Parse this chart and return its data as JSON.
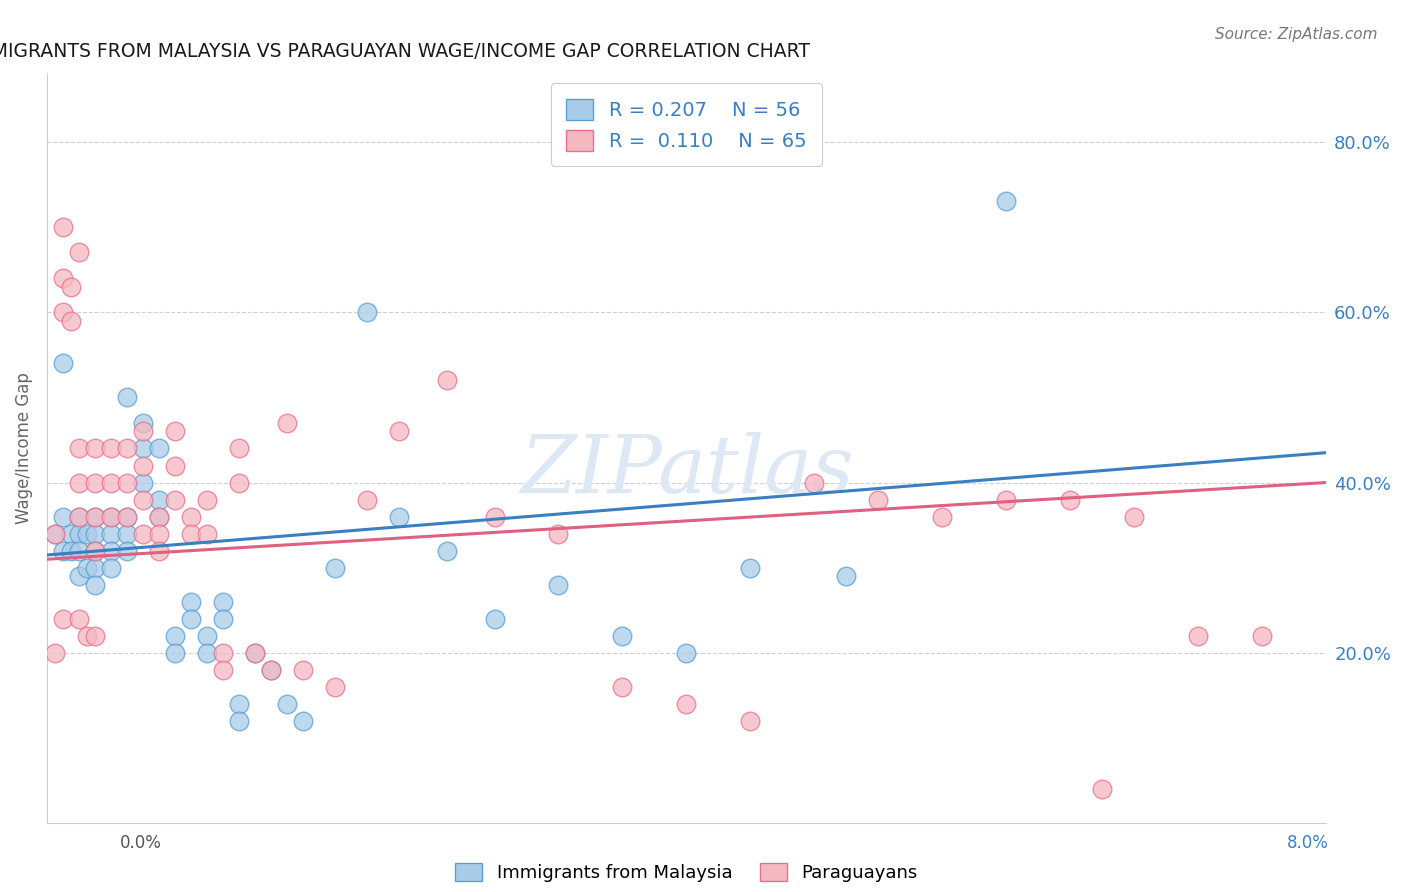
{
  "title": "IMMIGRANTS FROM MALAYSIA VS PARAGUAYAN WAGE/INCOME GAP CORRELATION CHART",
  "source": "Source: ZipAtlas.com",
  "ylabel": "Wage/Income Gap",
  "ytick_values": [
    0.2,
    0.4,
    0.6,
    0.8
  ],
  "xmin": 0.0,
  "xmax": 0.08,
  "ymin": 0.0,
  "ymax": 0.88,
  "blue_color": "#a8cce8",
  "pink_color": "#f4b8c1",
  "blue_edge_color": "#5a9fd4",
  "pink_edge_color": "#e87090",
  "blue_line_color": "#3a7fc1",
  "pink_line_color": "#e06080",
  "watermark_color": "#dde8f5",
  "blue_r": 0.207,
  "blue_n": 56,
  "pink_r": 0.11,
  "pink_n": 65,
  "blue_line_x0": 0.0,
  "blue_line_y0": 0.315,
  "blue_line_x1": 0.08,
  "blue_line_y1": 0.435,
  "pink_line_x0": 0.0,
  "pink_line_y0": 0.31,
  "pink_line_x1": 0.08,
  "pink_line_y1": 0.4,
  "blue_scatter_x": [
    0.0005,
    0.001,
    0.001,
    0.001,
    0.0015,
    0.0015,
    0.002,
    0.002,
    0.002,
    0.002,
    0.0025,
    0.0025,
    0.003,
    0.003,
    0.003,
    0.003,
    0.003,
    0.004,
    0.004,
    0.004,
    0.004,
    0.005,
    0.005,
    0.005,
    0.005,
    0.006,
    0.006,
    0.006,
    0.007,
    0.007,
    0.007,
    0.008,
    0.008,
    0.009,
    0.009,
    0.01,
    0.01,
    0.011,
    0.011,
    0.012,
    0.012,
    0.013,
    0.014,
    0.015,
    0.016,
    0.018,
    0.02,
    0.022,
    0.025,
    0.028,
    0.032,
    0.036,
    0.04,
    0.044,
    0.05,
    0.06
  ],
  "blue_scatter_y": [
    0.34,
    0.54,
    0.36,
    0.32,
    0.34,
    0.32,
    0.36,
    0.34,
    0.32,
    0.29,
    0.34,
    0.3,
    0.36,
    0.34,
    0.32,
    0.3,
    0.28,
    0.36,
    0.34,
    0.32,
    0.3,
    0.5,
    0.36,
    0.34,
    0.32,
    0.47,
    0.44,
    0.4,
    0.44,
    0.38,
    0.36,
    0.22,
    0.2,
    0.26,
    0.24,
    0.22,
    0.2,
    0.26,
    0.24,
    0.14,
    0.12,
    0.2,
    0.18,
    0.14,
    0.12,
    0.3,
    0.6,
    0.36,
    0.32,
    0.24,
    0.28,
    0.22,
    0.2,
    0.3,
    0.29,
    0.73
  ],
  "pink_scatter_x": [
    0.0005,
    0.0005,
    0.001,
    0.001,
    0.001,
    0.0015,
    0.0015,
    0.002,
    0.002,
    0.002,
    0.002,
    0.0025,
    0.003,
    0.003,
    0.003,
    0.003,
    0.004,
    0.004,
    0.004,
    0.005,
    0.005,
    0.005,
    0.006,
    0.006,
    0.006,
    0.006,
    0.007,
    0.007,
    0.007,
    0.008,
    0.008,
    0.008,
    0.009,
    0.009,
    0.01,
    0.01,
    0.011,
    0.011,
    0.012,
    0.012,
    0.013,
    0.014,
    0.015,
    0.016,
    0.018,
    0.02,
    0.022,
    0.025,
    0.028,
    0.032,
    0.036,
    0.04,
    0.044,
    0.048,
    0.052,
    0.056,
    0.06,
    0.064,
    0.068,
    0.072,
    0.076,
    0.001,
    0.002,
    0.003,
    0.066
  ],
  "pink_scatter_y": [
    0.34,
    0.2,
    0.64,
    0.6,
    0.24,
    0.63,
    0.59,
    0.44,
    0.4,
    0.36,
    0.24,
    0.22,
    0.44,
    0.4,
    0.36,
    0.32,
    0.44,
    0.4,
    0.36,
    0.44,
    0.4,
    0.36,
    0.46,
    0.42,
    0.38,
    0.34,
    0.36,
    0.34,
    0.32,
    0.46,
    0.42,
    0.38,
    0.36,
    0.34,
    0.38,
    0.34,
    0.2,
    0.18,
    0.44,
    0.4,
    0.2,
    0.18,
    0.47,
    0.18,
    0.16,
    0.38,
    0.46,
    0.52,
    0.36,
    0.34,
    0.16,
    0.14,
    0.12,
    0.4,
    0.38,
    0.36,
    0.38,
    0.38,
    0.36,
    0.22,
    0.22,
    0.7,
    0.67,
    0.22,
    0.04
  ]
}
